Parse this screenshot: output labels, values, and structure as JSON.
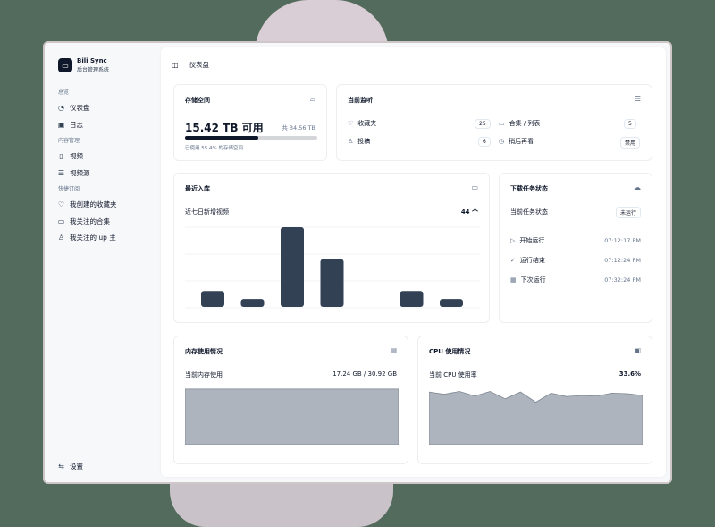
{
  "app": {
    "name": "Bili Sync",
    "subtitle": "后台管理系统"
  },
  "sidebar": {
    "groups": [
      {
        "label": "总览",
        "items": [
          {
            "label": "仪表盘",
            "icon": "pie-chart-icon"
          },
          {
            "label": "日志",
            "icon": "log-icon"
          }
        ]
      },
      {
        "label": "内容管理",
        "items": [
          {
            "label": "视频",
            "icon": "file-video-icon"
          },
          {
            "label": "视频源",
            "icon": "database-icon"
          }
        ]
      },
      {
        "label": "快捷订阅",
        "items": [
          {
            "label": "我创建的收藏夹",
            "icon": "heart-icon"
          },
          {
            "label": "我关注的合集",
            "icon": "folder-icon"
          },
          {
            "label": "我关注的 up 主",
            "icon": "user-icon"
          }
        ]
      }
    ],
    "settings": "设置"
  },
  "header": {
    "title": "仪表盘"
  },
  "storage": {
    "title": "存储空间",
    "available": "15.42 TB 可用",
    "total": "共 34.56 TB",
    "used_percent": 55.4,
    "note": "已使用 55.4% 的存储空间"
  },
  "monitor": {
    "title": "当前监听",
    "items": [
      {
        "label": "收藏夹",
        "value": "25",
        "icon": "heart-icon"
      },
      {
        "label": "合集 / 列表",
        "value": "5",
        "icon": "folder-icon"
      },
      {
        "label": "投稿",
        "value": "6",
        "icon": "user-icon"
      },
      {
        "label": "稍后再看",
        "value": "禁用",
        "icon": "clock-icon"
      }
    ]
  },
  "recent": {
    "title": "最近入库",
    "label": "近七日新增视频",
    "count": "44 个"
  },
  "tasks": {
    "title": "下载任务状态",
    "status_label": "当前任务状态",
    "status": "未运行",
    "rows": [
      {
        "label": "开始运行",
        "time": "07:12:17 PM",
        "icon": "play-icon"
      },
      {
        "label": "运行结束",
        "time": "07:12:24 PM",
        "icon": "check-circle-icon"
      },
      {
        "label": "下次运行",
        "time": "07:32:24 PM",
        "icon": "calendar-icon"
      }
    ]
  },
  "memory": {
    "title": "内存使用情况",
    "label": "当前内存使用",
    "value": "17.24 GB / 30.92 GB"
  },
  "cpu": {
    "title": "CPU 使用情况",
    "label": "当前 CPU 使用率",
    "value": "33.6%"
  },
  "colors": {
    "bar": "#334155",
    "area": "#adb4be",
    "accent": "#0f172a"
  },
  "chart_data": [
    {
      "type": "bar",
      "values": [
        4,
        2,
        20,
        12,
        0,
        4,
        2
      ]
    },
    {
      "type": "area",
      "values": [
        97,
        97,
        97,
        97,
        97,
        97,
        97,
        97,
        97,
        97,
        97,
        97
      ]
    },
    {
      "type": "area",
      "values": [
        92,
        88,
        93,
        85,
        93,
        80,
        92,
        74,
        90,
        84,
        86,
        85,
        90,
        89,
        86
      ]
    }
  ]
}
